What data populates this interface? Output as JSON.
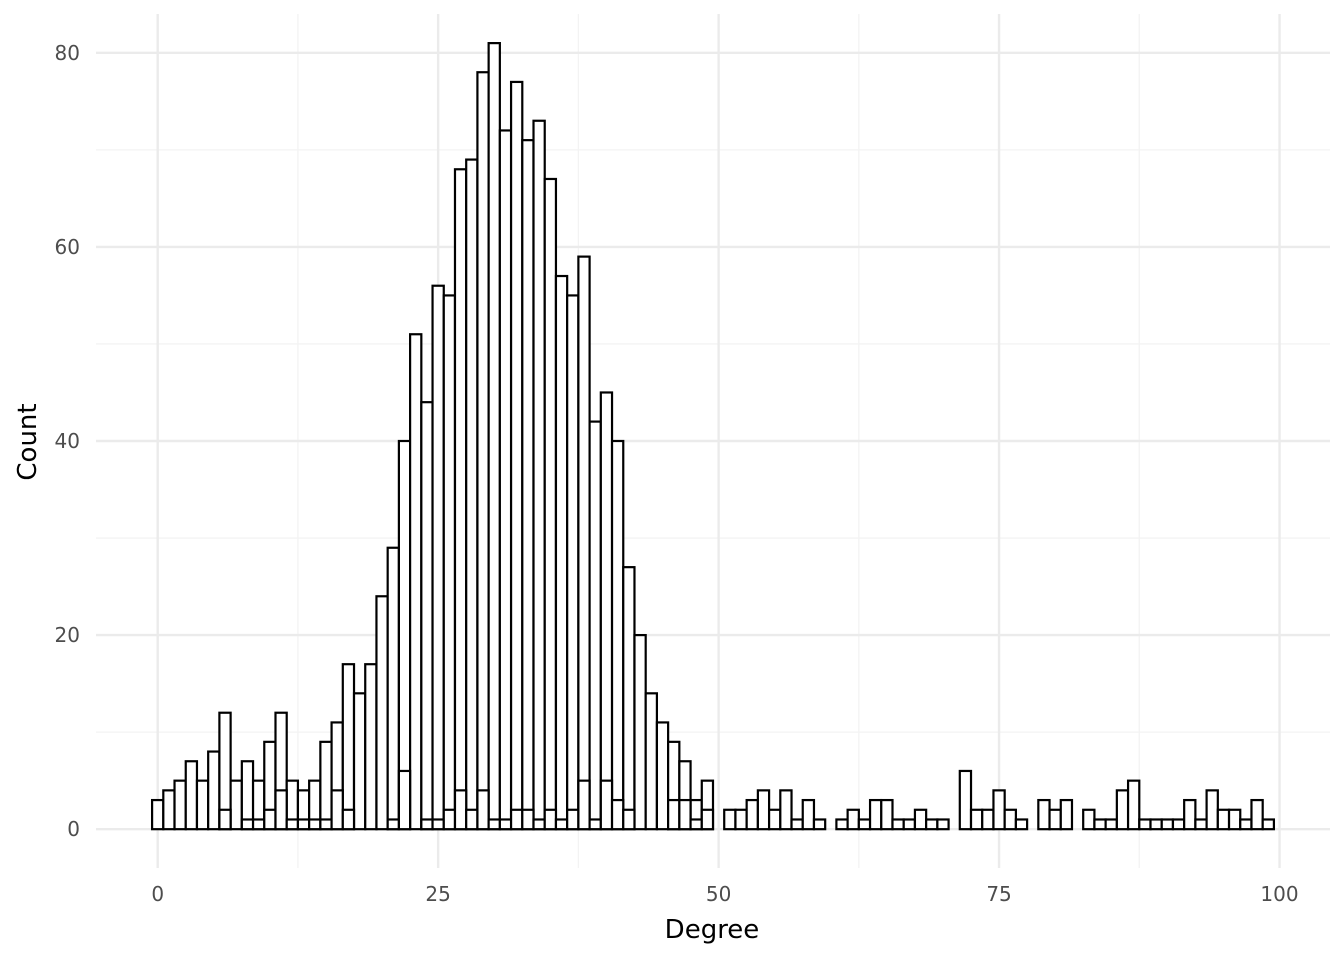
{
  "chart_data": {
    "type": "bar",
    "subtype": "histogram",
    "title": "",
    "xlabel": "Degree",
    "ylabel": "Count",
    "xlim": [
      -5.5,
      104.5
    ],
    "ylim": [
      -4,
      84
    ],
    "x_ticks": [
      0,
      25,
      50,
      75,
      100
    ],
    "y_ticks": [
      0,
      20,
      40,
      60,
      80
    ],
    "x_tick_labels": [
      "0",
      "25",
      "50",
      "75",
      "100"
    ],
    "y_tick_labels": [
      "0",
      "20",
      "40",
      "60",
      "80"
    ],
    "grid": true,
    "legend": "none",
    "bar_fill": "#ffffff",
    "bar_outline": "#000000",
    "bin_width": 1,
    "series": [
      {
        "x": [
          0,
          1,
          2,
          3,
          4,
          5,
          6,
          7,
          8,
          9,
          10,
          11,
          12,
          13,
          14,
          15,
          16,
          17,
          18,
          19,
          20,
          21,
          22,
          23,
          24,
          25,
          26,
          27,
          28,
          29,
          30,
          31,
          32,
          33,
          34,
          35,
          36,
          37,
          38,
          39,
          40,
          41,
          42,
          43,
          44,
          45,
          46,
          47,
          48,
          49,
          51,
          52,
          53,
          54,
          55,
          56,
          57,
          58,
          59,
          61,
          62,
          63,
          64,
          65,
          66,
          67,
          68,
          69,
          70,
          72,
          73,
          74,
          75,
          76,
          77,
          79,
          80,
          81,
          83,
          84,
          85,
          86,
          87,
          88,
          89,
          90,
          91,
          92,
          93,
          94,
          95,
          96,
          97,
          98,
          99
        ],
        "values": [
          3,
          4,
          5,
          7,
          5,
          8,
          12,
          5,
          7,
          5,
          9,
          12,
          5,
          4,
          5,
          9,
          11,
          17,
          14,
          17,
          24,
          29,
          40,
          51,
          44,
          56,
          55,
          68,
          69,
          78,
          81,
          72,
          77,
          71,
          73,
          67,
          57,
          55,
          59,
          42,
          45,
          40,
          27,
          20,
          14,
          11,
          9,
          7,
          3,
          5,
          2,
          2,
          3,
          4,
          2,
          4,
          1,
          3,
          1,
          1,
          2,
          1,
          3,
          3,
          1,
          1,
          2,
          1,
          1,
          6,
          2,
          2,
          4,
          2,
          1,
          3,
          2,
          3,
          2,
          1,
          1,
          4,
          5,
          1,
          1,
          1,
          1,
          3,
          1,
          4,
          2,
          2,
          1,
          3,
          1
        ]
      },
      {
        "x": [
          6,
          8,
          9,
          10,
          11,
          12,
          13,
          14,
          15,
          16,
          17,
          21,
          22,
          24,
          25,
          26,
          27,
          28,
          29,
          30,
          31,
          32,
          33,
          34,
          35,
          36,
          37,
          38,
          39,
          40,
          41,
          42,
          46,
          47,
          48,
          49
        ],
        "values": [
          2,
          1,
          1,
          2,
          4,
          1,
          1,
          1,
          1,
          4,
          2,
          1,
          6,
          1,
          1,
          2,
          4,
          2,
          4,
          1,
          1,
          2,
          2,
          1,
          2,
          1,
          2,
          5,
          1,
          5,
          3,
          2,
          3,
          3,
          1,
          2
        ]
      }
    ]
  }
}
